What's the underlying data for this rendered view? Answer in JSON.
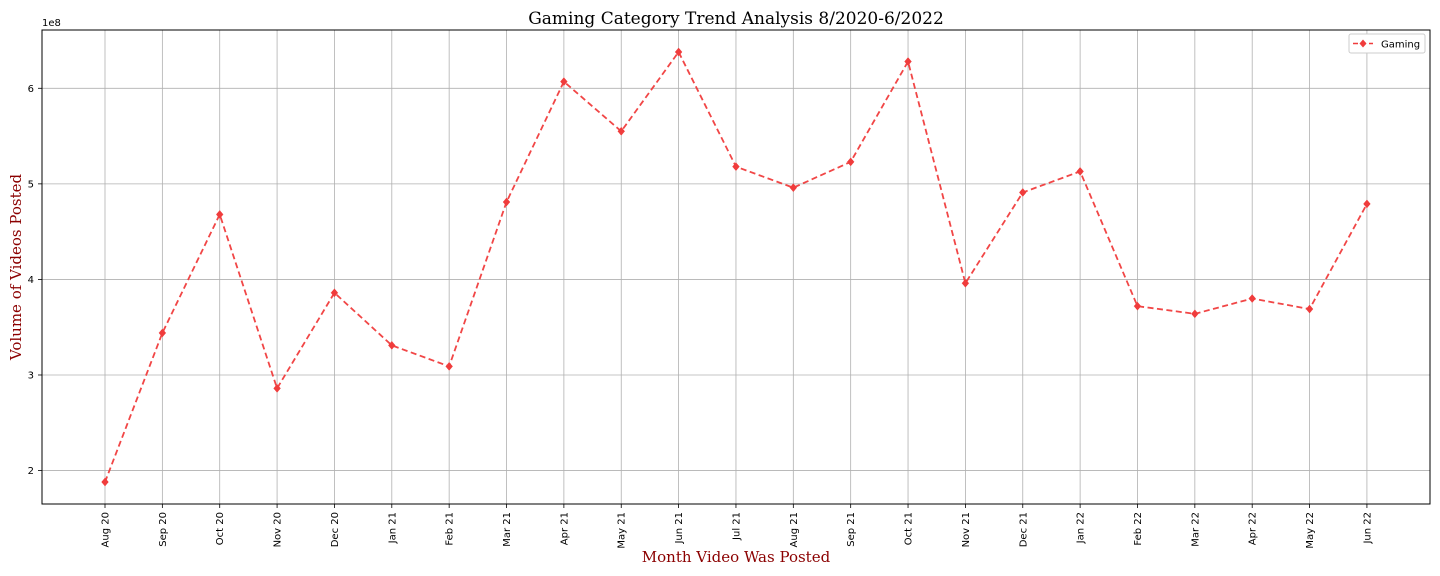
{
  "chart_data": {
    "type": "line",
    "title": "Gaming Category Trend Analysis 8/2020-6/2022",
    "xlabel": "Month Video Was Posted",
    "ylabel": "Volume of Videos Posted",
    "y_scale_label": "1e8",
    "categories": [
      "Aug 20",
      "Sep 20",
      "Oct 20",
      "Nov 20",
      "Dec 20",
      "Jan 21",
      "Feb 21",
      "Mar 21",
      "Apr 21",
      "May 21",
      "Jun 21",
      "Jul 21",
      "Aug 21",
      "Sep 21",
      "Oct 21",
      "Nov 21",
      "Dec 21",
      "Jan 22",
      "Feb 22",
      "Mar 22",
      "Apr 22",
      "May 22",
      "Jun 22"
    ],
    "series": [
      {
        "name": "Gaming",
        "color": "#f03c3c",
        "line_style": "dashed",
        "marker": "diamond",
        "values": [
          188000000,
          344000000,
          468000000,
          286000000,
          386000000,
          331000000,
          309000000,
          481000000,
          607000000,
          555000000,
          638000000,
          518000000,
          496000000,
          523000000,
          628000000,
          396000000,
          491000000,
          513000000,
          372000000,
          364000000,
          380000000,
          369000000,
          479000000
        ]
      }
    ],
    "y_ticks": [
      200000000,
      300000000,
      400000000,
      500000000,
      600000000
    ],
    "y_tick_labels": [
      "2",
      "3",
      "4",
      "5",
      "6"
    ],
    "ylim": [
      165000000,
      661000000
    ],
    "grid": true,
    "legend_position": "top-right",
    "label_color": "#8b0000"
  }
}
